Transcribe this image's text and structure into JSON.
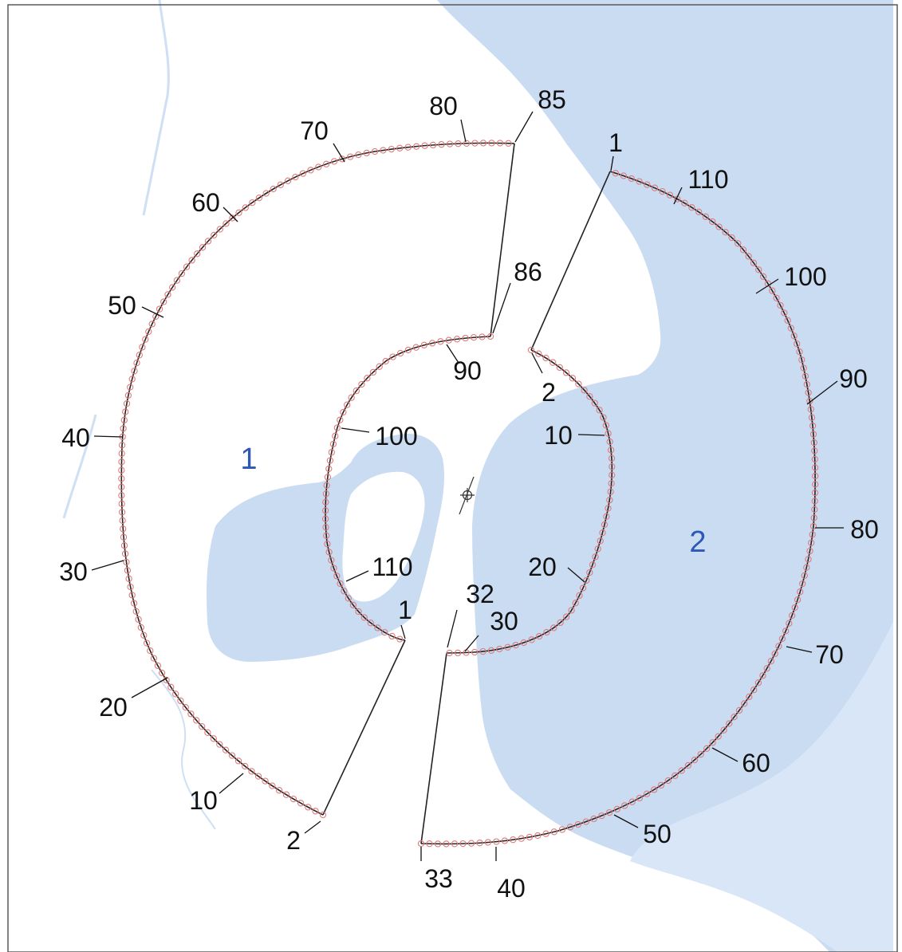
{
  "colors": {
    "water": "#c9dbf2",
    "water_light": "#dae7f7",
    "land": "#ffffff",
    "frame": "#5a5a5a",
    "path": "#222222",
    "marker": "#e07a7a",
    "label": "#111111",
    "region_label": "#2e58b5"
  },
  "center_symbol": "crosshair-circle-icon",
  "regions": [
    {
      "id": "region-1",
      "label": "1"
    },
    {
      "id": "region-2",
      "label": "2"
    }
  ],
  "labels": [
    {
      "id": "l1-2",
      "text": "2"
    },
    {
      "id": "l1-10",
      "text": "10"
    },
    {
      "id": "l1-20",
      "text": "20"
    },
    {
      "id": "l1-30",
      "text": "30"
    },
    {
      "id": "l1-40",
      "text": "40"
    },
    {
      "id": "l1-50",
      "text": "50"
    },
    {
      "id": "l1-60",
      "text": "60"
    },
    {
      "id": "l1-70",
      "text": "70"
    },
    {
      "id": "l1-80",
      "text": "80"
    },
    {
      "id": "l1-85",
      "text": "85"
    },
    {
      "id": "l1-86",
      "text": "86"
    },
    {
      "id": "l1-90",
      "text": "90"
    },
    {
      "id": "l1-100",
      "text": "100"
    },
    {
      "id": "l1-110",
      "text": "110"
    },
    {
      "id": "l1-1",
      "text": "1"
    },
    {
      "id": "l2-1",
      "text": "1"
    },
    {
      "id": "l2-2",
      "text": "2"
    },
    {
      "id": "l2-10",
      "text": "10"
    },
    {
      "id": "l2-20",
      "text": "20"
    },
    {
      "id": "l2-30",
      "text": "30"
    },
    {
      "id": "l2-32",
      "text": "32"
    },
    {
      "id": "l2-33",
      "text": "33"
    },
    {
      "id": "l2-40",
      "text": "40"
    },
    {
      "id": "l2-50",
      "text": "50"
    },
    {
      "id": "l2-60",
      "text": "60"
    },
    {
      "id": "l2-70",
      "text": "70"
    },
    {
      "id": "l2-80",
      "text": "80"
    },
    {
      "id": "l2-90",
      "text": "90"
    },
    {
      "id": "l2-100",
      "text": "100"
    },
    {
      "id": "l2-110",
      "text": "110"
    }
  ]
}
